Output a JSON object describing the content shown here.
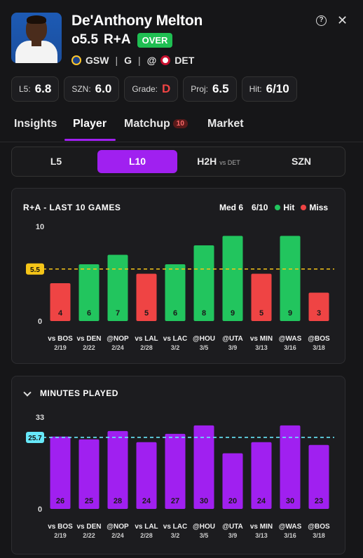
{
  "player": {
    "name": "De'Anthony Melton",
    "line": "o5.5",
    "stat": "R+A",
    "pick": "OVER",
    "team": "GSW",
    "position": "G",
    "at": "@",
    "opponent": "DET"
  },
  "icons": {
    "help": "help-icon",
    "close": "close-icon"
  },
  "pills": [
    {
      "key": "L5:",
      "value": "6.8",
      "color": "#ffffff"
    },
    {
      "key": "SZN:",
      "value": "6.0",
      "color": "#ffffff"
    },
    {
      "key": "Grade:",
      "value": "D",
      "color": "#ef4444"
    },
    {
      "key": "Proj:",
      "value": "6.5",
      "color": "#ffffff"
    },
    {
      "key": "Hit:",
      "value": "6/10",
      "color": "#ffffff"
    }
  ],
  "tabs": [
    {
      "label": "Insights"
    },
    {
      "label": "Player",
      "active": true
    },
    {
      "label": "Matchup",
      "badge": "10"
    },
    {
      "label": "Market"
    }
  ],
  "segments": [
    {
      "label": "L5"
    },
    {
      "label": "L10",
      "active": true
    },
    {
      "label": "H2H",
      "sub": "vs DET"
    },
    {
      "label": "SZN"
    }
  ],
  "colors": {
    "accent": "#a020f0",
    "hit": "#22c55e",
    "miss": "#ef4444",
    "line_marker": "#f5c518",
    "minutes_marker": "#67e8f9"
  },
  "chart_data": [
    {
      "type": "bar",
      "title": "R+A - LAST 10 GAMES",
      "summary": {
        "median": "Med 6",
        "hit_rate": "6/10"
      },
      "legend": [
        {
          "label": "Hit",
          "color": "#22c55e"
        },
        {
          "label": "Miss",
          "color": "#ef4444"
        }
      ],
      "categories": [
        "vs BOS",
        "vs DEN",
        "@NOP",
        "vs LAL",
        "vs LAC",
        "@HOU",
        "@UTA",
        "vs MIN",
        "@WAS",
        "@BOS"
      ],
      "dates": [
        "2/19",
        "2/22",
        "2/24",
        "2/28",
        "3/2",
        "3/5",
        "3/9",
        "3/13",
        "3/16",
        "3/18"
      ],
      "values": [
        4,
        6,
        7,
        5,
        6,
        8,
        9,
        5,
        9,
        3
      ],
      "line": 5.5,
      "line_label": "5.5",
      "ylim": [
        0,
        10
      ],
      "yticks": [
        "0",
        "10"
      ],
      "grid": false
    },
    {
      "type": "bar",
      "title": "MINUTES PLAYED",
      "categories": [
        "vs BOS",
        "vs DEN",
        "@NOP",
        "vs LAL",
        "vs LAC",
        "@HOU",
        "@UTA",
        "vs MIN",
        "@WAS",
        "@BOS"
      ],
      "dates": [
        "2/19",
        "2/22",
        "2/24",
        "2/28",
        "3/2",
        "3/5",
        "3/9",
        "3/13",
        "3/16",
        "3/18"
      ],
      "values": [
        26,
        25,
        28,
        24,
        27,
        30,
        20,
        24,
        30,
        23
      ],
      "line": 25.7,
      "line_label": "25.7",
      "ylim": [
        0,
        33
      ],
      "yticks": [
        "0",
        "33"
      ],
      "bar_color": "#a020f0",
      "grid": false
    }
  ]
}
